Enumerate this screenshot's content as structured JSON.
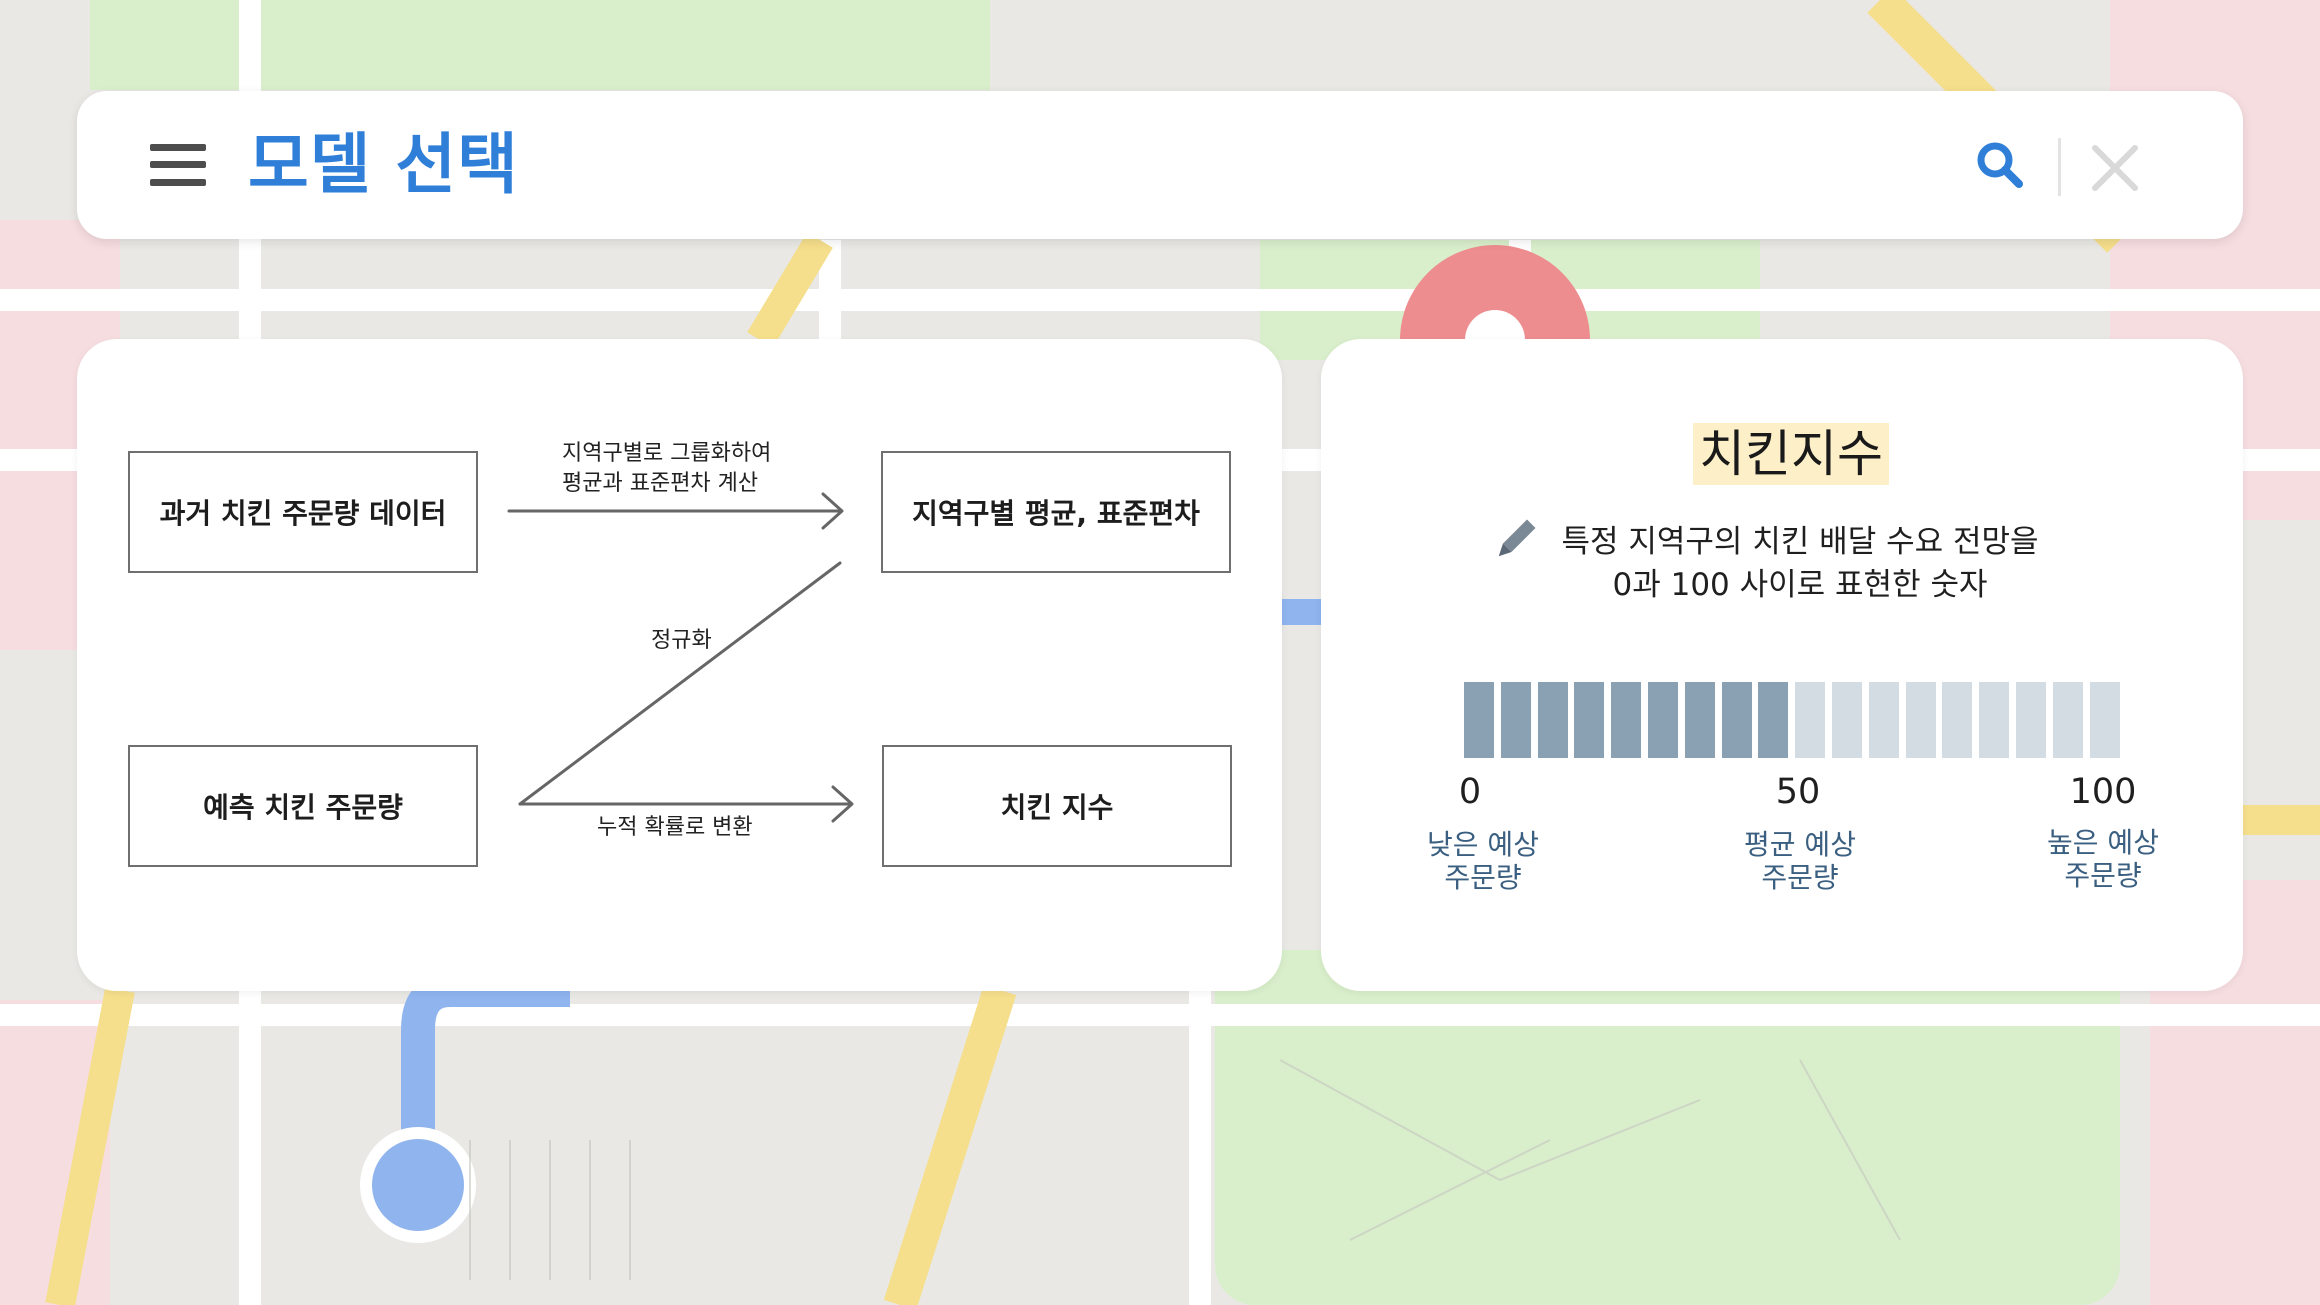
{
  "header": {
    "title": "모델 선택",
    "menu_icon": "hamburger-menu-icon",
    "search_icon": "search-icon",
    "close_icon": "close-icon",
    "accent_color": "#2f7fd8"
  },
  "flow": {
    "box_history": "과거 치킨 주문량 데이터",
    "box_stats": "지역구별 평균, 표준편차",
    "box_predicted": "예측 치킨 주문량",
    "box_index": "치킨 지수",
    "arrow_group_line1": "지역구별로 그룹화하여",
    "arrow_group_line2": "평균과 표준편차 계산",
    "arrow_normalize": "정규화",
    "arrow_cumulative": "누적 확률로 변환"
  },
  "index_panel": {
    "title": "치킨지수",
    "pencil_icon": "pencil-icon",
    "desc_line1": "특정 지역구의 치킨 배달 수요 전망을",
    "desc_line2": "0과 100 사이로 표현한 숫자",
    "gauge": {
      "segments_total": 18,
      "segments_filled": 9,
      "filled_color": "#8aa0b3",
      "empty_color": "#d4dce3"
    },
    "ticks": [
      "0",
      "50",
      "100"
    ],
    "captions": [
      {
        "line1": "낮은 예상",
        "line2": "주문량"
      },
      {
        "line1": "평균 예상",
        "line2": "주문량"
      },
      {
        "line1": "높은 예상",
        "line2": "주문량"
      }
    ]
  }
}
